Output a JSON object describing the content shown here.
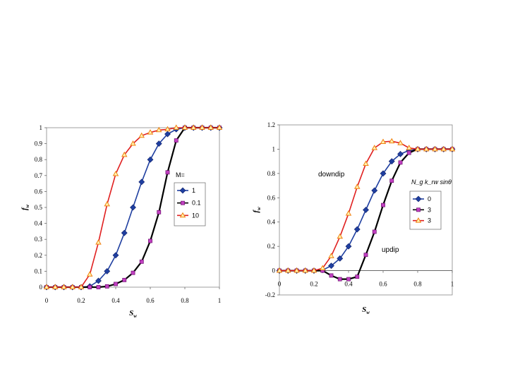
{
  "chart_data": [
    {
      "type": "line",
      "title": "",
      "xlabel": "S_w",
      "ylabel": "f_w",
      "xlim": [
        0,
        1
      ],
      "ylim": [
        0,
        1
      ],
      "x_ticks": [
        "0",
        "0.2",
        "0.4",
        "0.6",
        "0.8",
        "1"
      ],
      "y_ticks": [
        "0",
        "0.1",
        "0.2",
        "0.3",
        "0.4",
        "0.5",
        "0.6",
        "0.7",
        "0.8",
        "0.9",
        "1"
      ],
      "legend_title": "M=",
      "legend_position": "center-right",
      "grid": false,
      "series": [
        {
          "name": "1",
          "color": "#1f3fa0",
          "marker": "diamond",
          "x": [
            0,
            0.05,
            0.1,
            0.15,
            0.2,
            0.25,
            0.3,
            0.35,
            0.4,
            0.45,
            0.5,
            0.55,
            0.6,
            0.65,
            0.7,
            0.75,
            0.8,
            0.85,
            0.9,
            0.95,
            1
          ],
          "y": [
            0,
            0,
            0,
            0,
            0,
            0.005,
            0.04,
            0.1,
            0.2,
            0.34,
            0.5,
            0.66,
            0.8,
            0.9,
            0.96,
            0.99,
            1,
            1,
            1,
            1,
            1
          ]
        },
        {
          "name": "0.1",
          "color": "#c040c0",
          "marker": "square",
          "x": [
            0,
            0.05,
            0.1,
            0.15,
            0.2,
            0.25,
            0.3,
            0.35,
            0.4,
            0.45,
            0.5,
            0.55,
            0.6,
            0.65,
            0.7,
            0.75,
            0.8,
            0.85,
            0.9,
            0.95,
            1
          ],
          "y": [
            0,
            0,
            0,
            0,
            0,
            0,
            0,
            0.005,
            0.02,
            0.045,
            0.09,
            0.16,
            0.29,
            0.47,
            0.72,
            0.92,
            1,
            1,
            1,
            1,
            1
          ]
        },
        {
          "name": "10",
          "color": "#f08010",
          "marker": "triangle",
          "x": [
            0,
            0.05,
            0.1,
            0.15,
            0.2,
            0.25,
            0.3,
            0.35,
            0.4,
            0.45,
            0.5,
            0.55,
            0.6,
            0.65,
            0.7,
            0.75,
            0.8,
            0.85,
            0.9,
            0.95,
            1
          ],
          "y": [
            0,
            0,
            0,
            0,
            0,
            0.08,
            0.28,
            0.52,
            0.71,
            0.83,
            0.9,
            0.95,
            0.97,
            0.985,
            0.99,
            1,
            1,
            1,
            1,
            1,
            1
          ]
        }
      ]
    },
    {
      "type": "line",
      "title": "",
      "xlabel": "S_w",
      "ylabel": "f_w",
      "xlim": [
        0,
        1
      ],
      "ylim": [
        -0.2,
        1.2
      ],
      "x_ticks": [
        "0",
        "0.2",
        "0.4",
        "0.6",
        "0.8",
        "1"
      ],
      "y_ticks": [
        "-0.2",
        "0",
        "0.2",
        "0.4",
        "0.6",
        "0.8",
        "1",
        "1.2"
      ],
      "legend_title": "N_g k_rw sinθ",
      "legend_position": "center-right",
      "annotations": [
        "downdip",
        "updip"
      ],
      "grid": false,
      "series": [
        {
          "name": "0",
          "color": "#1f3fa0",
          "marker": "diamond",
          "x": [
            0,
            0.05,
            0.1,
            0.15,
            0.2,
            0.25,
            0.3,
            0.35,
            0.4,
            0.45,
            0.5,
            0.55,
            0.6,
            0.65,
            0.7,
            0.75,
            0.8,
            0.85,
            0.9,
            0.95,
            1
          ],
          "y": [
            0,
            0,
            0,
            0,
            0,
            0.005,
            0.04,
            0.1,
            0.2,
            0.34,
            0.5,
            0.66,
            0.8,
            0.9,
            0.96,
            0.99,
            1,
            1,
            1,
            1,
            1
          ]
        },
        {
          "name": "3",
          "color": "#c040c0",
          "marker": "square",
          "x": [
            0,
            0.05,
            0.1,
            0.15,
            0.2,
            0.25,
            0.3,
            0.35,
            0.4,
            0.45,
            0.5,
            0.55,
            0.6,
            0.65,
            0.7,
            0.75,
            0.8,
            0.85,
            0.9,
            0.95,
            1
          ],
          "y": [
            0,
            0,
            0,
            0,
            0,
            0,
            -0.04,
            -0.07,
            -0.07,
            -0.05,
            0.13,
            0.32,
            0.54,
            0.74,
            0.89,
            0.97,
            1,
            1,
            1,
            1,
            1
          ]
        },
        {
          "name": "3",
          "color": "#f08010",
          "marker": "triangle",
          "x": [
            0,
            0.05,
            0.1,
            0.15,
            0.2,
            0.25,
            0.3,
            0.35,
            0.4,
            0.45,
            0.5,
            0.55,
            0.6,
            0.65,
            0.7,
            0.75,
            0.8,
            0.85,
            0.9,
            0.95,
            1
          ],
          "y": [
            0,
            0,
            0,
            0,
            0,
            0.02,
            0.12,
            0.28,
            0.47,
            0.69,
            0.88,
            1.01,
            1.06,
            1.065,
            1.05,
            1.01,
            1,
            1,
            1,
            1,
            1
          ]
        }
      ]
    }
  ]
}
